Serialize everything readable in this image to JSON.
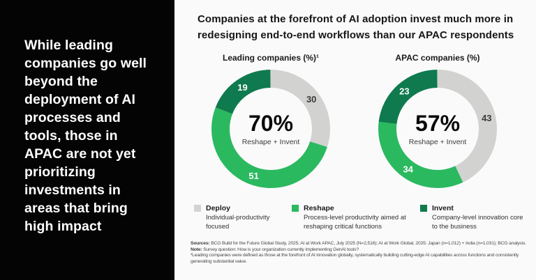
{
  "sidebar": {
    "headline": "While leading companies go well beyond the deployment of AI processes and tools, those in APAC are not yet prioritizing investments in areas that bring high impact"
  },
  "header": {
    "title_lines": [
      "Companies at the forefront of AI adoption invest much more in",
      "redesigning end-to-end workflows than our APAC respondents"
    ]
  },
  "palette": {
    "deploy_gray": "#D2D2D1",
    "reshape_green": "#2BB960",
    "invent_dark_green": "#0F7A4D",
    "panel_black": "#040404",
    "background": "#FAFAFB"
  },
  "chart_data": [
    {
      "type": "pie",
      "subtype": "donut",
      "title": "Leading companies (%)¹",
      "center_value": "70%",
      "center_label": "Reshape + Invent",
      "units": "%",
      "total": 100,
      "start_angle": "top",
      "direction": "clockwise",
      "hole_ratio": 0.69,
      "segments": [
        {
          "label": "Deploy",
          "value": 30,
          "color": "#D2D2D1",
          "text_color": "#3A3A3A"
        },
        {
          "label": "Reshape",
          "value": 51,
          "color": "#2BB960",
          "text_color": "#FFFFFF"
        },
        {
          "label": "Invent",
          "value": 19,
          "color": "#0F7A4D",
          "text_color": "#FFFFFF"
        }
      ]
    },
    {
      "type": "pie",
      "subtype": "donut",
      "title": "APAC companies (%)",
      "center_value": "57%",
      "center_label": "Reshape + Invent",
      "units": "%",
      "total": 100,
      "start_angle": "top",
      "direction": "clockwise",
      "hole_ratio": 0.69,
      "segments": [
        {
          "label": "Deploy",
          "value": 43,
          "color": "#D2D2D1",
          "text_color": "#3A3A3A"
        },
        {
          "label": "Reshape",
          "value": 34,
          "color": "#2BB960",
          "text_color": "#FFFFFF"
        },
        {
          "label": "Invent",
          "value": 23,
          "color": "#0F7A4D",
          "text_color": "#FFFFFF"
        }
      ]
    }
  ],
  "legend": {
    "position": "bottom",
    "items": [
      {
        "name": "Deploy",
        "description": "Individual-productivity focused",
        "color": "#D2D2D1"
      },
      {
        "name": "Reshape",
        "description": "Process-level productivity aimed at reshaping critical functions",
        "color": "#2BB960"
      },
      {
        "name": "Invent",
        "description": "Company-level innovation core to the business",
        "color": "#0F7A4D"
      }
    ]
  },
  "footnotes": {
    "sources_label": "Sources:",
    "sources_text": " BCG Build for the Future Global Study, 2025; AI at Work APAC, July 2025 (N=2,516); AI at Work Global, 2025: Japan (n=1,012) + India (n=1,031); BCG analysis.",
    "note_label": "Note:",
    "note_text": " Survey question: How is your organization currently implementing GenAI tools?",
    "footnote1_text": "¹Leading companies were defined as those at the forefront of AI innovation globally, systematically building cutting-edge AI capabilities across functions and consistently generating substantial value."
  }
}
